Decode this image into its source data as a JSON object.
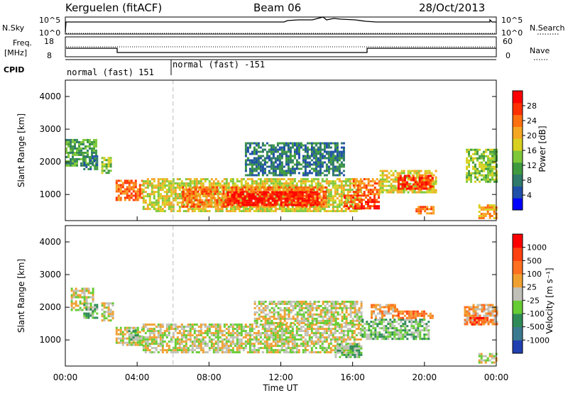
{
  "header": {
    "station": "Kerguelen (fitACF)",
    "beam": "Beam 06",
    "date": "28/Oct/2013"
  },
  "top_panels": {
    "nsky_label": "N.Sky",
    "nsky_ticks": [
      "10^5",
      "10^0"
    ],
    "nsearch_label": "N.Search",
    "nsearch_ticks": [
      "10^5",
      "10^0"
    ],
    "freq_label_1": "Freq.",
    "freq_label_2": "[MHz]",
    "freq_ticks": [
      "18",
      "8"
    ],
    "nave_label": "Nave",
    "nave_ticks": [
      "60",
      "0"
    ],
    "cpid_label": "CPID",
    "cpid_segments": [
      "normal (fast) 151",
      "normal (fast) -151"
    ]
  },
  "chart_data": [
    {
      "type": "heatmap",
      "name": "power",
      "ylabel": "Slant Range [km]",
      "xlabel": "",
      "yticks": [
        "1000",
        "2000",
        "3000",
        "4000"
      ],
      "ylim": [
        200,
        4500
      ],
      "xlim": [
        0,
        24
      ],
      "colorbar_label": "Power [dB]",
      "colorbar_ticks": [
        "28",
        "24",
        "20",
        "16",
        "12",
        "8",
        "4"
      ],
      "colorbar_colors": [
        "#0000ff",
        "#1f4fa8",
        "#2f7a6a",
        "#3f9a3f",
        "#7ec83a",
        "#d8d020",
        "#f5a623",
        "#ff7010",
        "#ff3000",
        "#ff0000"
      ],
      "bands": [
        {
          "t0": 0.0,
          "t1": 1.7,
          "r0": 1900,
          "r1": 2700,
          "level": 3
        },
        {
          "t0": 1.0,
          "t1": 1.8,
          "r0": 1750,
          "r1": 2200,
          "level": 2
        },
        {
          "t0": 2.0,
          "t1": 2.5,
          "r0": 1650,
          "r1": 2150,
          "level": 4
        },
        {
          "t0": 2.8,
          "t1": 4.3,
          "r0": 850,
          "r1": 1450,
          "level": 7
        },
        {
          "t0": 4.3,
          "t1": 16.5,
          "r0": 500,
          "r1": 1500,
          "level": 5
        },
        {
          "t0": 6.5,
          "t1": 14.5,
          "r0": 650,
          "r1": 1250,
          "level": 7
        },
        {
          "t0": 9.0,
          "t1": 14.0,
          "r0": 700,
          "r1": 1100,
          "level": 9
        },
        {
          "t0": 10.0,
          "t1": 15.5,
          "r0": 1600,
          "r1": 2600,
          "level": 2
        },
        {
          "t0": 15.5,
          "t1": 17.5,
          "r0": 550,
          "r1": 1000,
          "level": 8
        },
        {
          "t0": 16.0,
          "t1": 17.5,
          "r0": 1000,
          "r1": 1500,
          "level": 7
        },
        {
          "t0": 17.5,
          "t1": 20.7,
          "r0": 1050,
          "r1": 1750,
          "level": 5
        },
        {
          "t0": 18.5,
          "t1": 20.5,
          "r0": 1200,
          "r1": 1600,
          "level": 8
        },
        {
          "t0": 19.5,
          "t1": 20.5,
          "r0": 400,
          "r1": 650,
          "level": 7
        },
        {
          "t0": 22.3,
          "t1": 24.0,
          "r0": 1400,
          "r1": 2400,
          "level": 4
        },
        {
          "t0": 23.0,
          "t1": 24.0,
          "r0": 300,
          "r1": 700,
          "level": 6
        }
      ]
    },
    {
      "type": "heatmap",
      "name": "velocity",
      "ylabel": "Slant Range [km]",
      "xlabel": "Time UT",
      "xticks": [
        "00:00",
        "04:00",
        "08:00",
        "12:00",
        "16:00",
        "20:00",
        "00:00"
      ],
      "yticks": [
        "1000",
        "2000",
        "3000",
        "4000"
      ],
      "ylim": [
        200,
        4500
      ],
      "xlim": [
        0,
        24
      ],
      "colorbar_label": "Velocity [m s⁻¹]",
      "colorbar_ticks": [
        "1000",
        "500",
        "100",
        "25",
        "-25",
        "-100",
        "-500",
        "-1000"
      ],
      "colorbar_colors": [
        "#2040b0",
        "#3a7a90",
        "#2e8b57",
        "#66cc33",
        "#c0c0b8",
        "#f0a030",
        "#ff7020",
        "#ff4010",
        "#ff0000"
      ],
      "bands": [
        {
          "t0": 0.3,
          "t1": 1.5,
          "r0": 1900,
          "r1": 2600,
          "level": 4
        },
        {
          "t0": 1.0,
          "t1": 1.8,
          "r0": 1700,
          "r1": 2100,
          "level": 3
        },
        {
          "t0": 2.0,
          "t1": 2.6,
          "r0": 1600,
          "r1": 2150,
          "level": 4
        },
        {
          "t0": 2.8,
          "t1": 4.3,
          "r0": 850,
          "r1": 1400,
          "level": 4
        },
        {
          "t0": 3.5,
          "t1": 4.0,
          "r0": 1000,
          "r1": 1300,
          "level": 3
        },
        {
          "t0": 4.3,
          "t1": 16.5,
          "r0": 600,
          "r1": 1500,
          "level": 4
        },
        {
          "t0": 10.5,
          "t1": 16.5,
          "r0": 1500,
          "r1": 2200,
          "level": 4
        },
        {
          "t0": 15.0,
          "t1": 16.5,
          "r0": 500,
          "r1": 900,
          "level": 3
        },
        {
          "t0": 16.5,
          "t1": 20.2,
          "r0": 1050,
          "r1": 1650,
          "level": 3
        },
        {
          "t0": 17.0,
          "t1": 18.5,
          "r0": 1650,
          "r1": 2100,
          "level": 5
        },
        {
          "t0": 18.5,
          "t1": 20.5,
          "r0": 1650,
          "r1": 1900,
          "level": 6
        },
        {
          "t0": 22.2,
          "t1": 24.0,
          "r0": 1450,
          "r1": 2100,
          "level": 5
        },
        {
          "t0": 22.5,
          "t1": 23.5,
          "r0": 1500,
          "r1": 1700,
          "level": 7
        },
        {
          "t0": 23.0,
          "t1": 24.0,
          "r0": 300,
          "r1": 600,
          "level": 4
        }
      ]
    }
  ]
}
